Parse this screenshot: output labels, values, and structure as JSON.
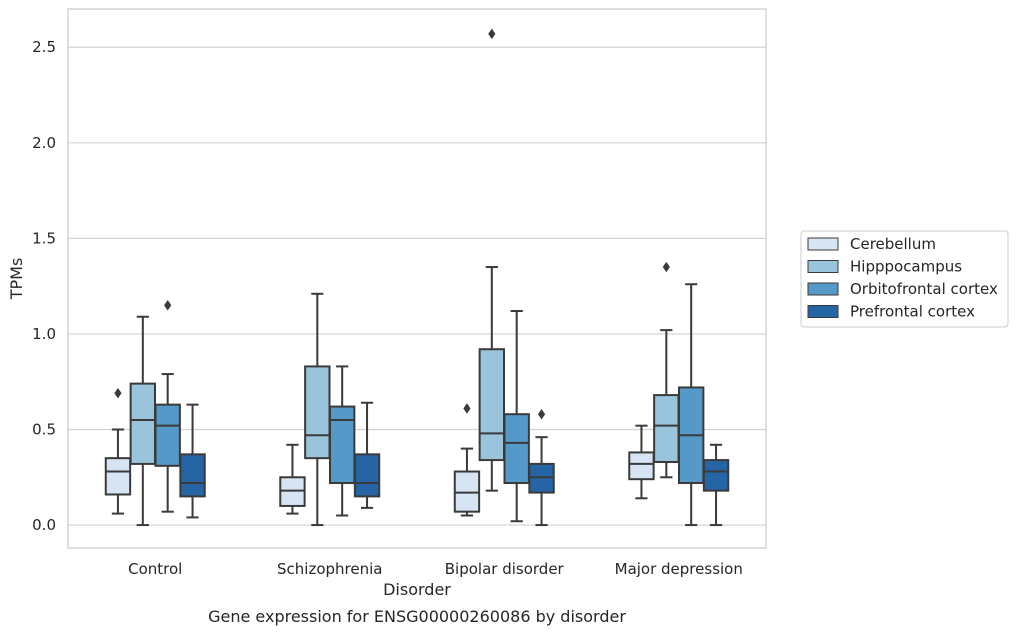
{
  "chart_data": {
    "type": "boxplot",
    "title": "Gene expression for ENSG00000260086 by disorder",
    "xlabel": "Disorder",
    "ylabel": "TPMs",
    "categories": [
      "Control",
      "Schizophrenia",
      "Bipolar disorder",
      "Major depression"
    ],
    "ylim": [
      -0.12,
      2.7
    ],
    "yticks": [
      "0.0",
      "0.5",
      "1.0",
      "1.5",
      "2.0",
      "2.5"
    ],
    "grid": true,
    "legend_position": "right",
    "series": [
      {
        "name": "Cerebellum",
        "color": "#d6e4f3",
        "boxes": [
          {
            "whisker_low": 0.06,
            "q1": 0.16,
            "median": 0.28,
            "q3": 0.35,
            "whisker_high": 0.5,
            "outliers": [
              0.69
            ]
          },
          {
            "whisker_low": 0.06,
            "q1": 0.1,
            "median": 0.18,
            "q3": 0.25,
            "whisker_high": 0.42,
            "outliers": []
          },
          {
            "whisker_low": 0.05,
            "q1": 0.07,
            "median": 0.17,
            "q3": 0.28,
            "whisker_high": 0.4,
            "outliers": [
              0.61
            ]
          },
          {
            "whisker_low": 0.14,
            "q1": 0.24,
            "median": 0.32,
            "q3": 0.38,
            "whisker_high": 0.52,
            "outliers": []
          }
        ]
      },
      {
        "name": "Hipppocampus",
        "color": "#9ac3dc",
        "boxes": [
          {
            "whisker_low": 0.0,
            "q1": 0.32,
            "median": 0.55,
            "q3": 0.74,
            "whisker_high": 1.09,
            "outliers": []
          },
          {
            "whisker_low": 0.0,
            "q1": 0.35,
            "median": 0.47,
            "q3": 0.83,
            "whisker_high": 1.21,
            "outliers": []
          },
          {
            "whisker_low": 0.18,
            "q1": 0.34,
            "median": 0.48,
            "q3": 0.92,
            "whisker_high": 1.35,
            "outliers": [
              2.57
            ]
          },
          {
            "whisker_low": 0.25,
            "q1": 0.33,
            "median": 0.52,
            "q3": 0.68,
            "whisker_high": 1.02,
            "outliers": [
              1.35
            ]
          }
        ]
      },
      {
        "name": "Orbitofrontal cortex",
        "color": "#5599c8",
        "boxes": [
          {
            "whisker_low": 0.07,
            "q1": 0.31,
            "median": 0.52,
            "q3": 0.63,
            "whisker_high": 0.79,
            "outliers": [
              1.15
            ]
          },
          {
            "whisker_low": 0.05,
            "q1": 0.22,
            "median": 0.55,
            "q3": 0.62,
            "whisker_high": 0.83,
            "outliers": []
          },
          {
            "whisker_low": 0.02,
            "q1": 0.22,
            "median": 0.43,
            "q3": 0.58,
            "whisker_high": 1.12,
            "outliers": []
          },
          {
            "whisker_low": 0.0,
            "q1": 0.22,
            "median": 0.47,
            "q3": 0.72,
            "whisker_high": 1.26,
            "outliers": []
          }
        ]
      },
      {
        "name": "Prefrontal cortex",
        "color": "#2565a5",
        "boxes": [
          {
            "whisker_low": 0.04,
            "q1": 0.15,
            "median": 0.22,
            "q3": 0.37,
            "whisker_high": 0.63,
            "outliers": []
          },
          {
            "whisker_low": 0.09,
            "q1": 0.15,
            "median": 0.22,
            "q3": 0.37,
            "whisker_high": 0.64,
            "outliers": []
          },
          {
            "whisker_low": 0.0,
            "q1": 0.17,
            "median": 0.25,
            "q3": 0.32,
            "whisker_high": 0.46,
            "outliers": [
              0.58
            ]
          },
          {
            "whisker_low": 0.0,
            "q1": 0.18,
            "median": 0.28,
            "q3": 0.34,
            "whisker_high": 0.42,
            "outliers": []
          }
        ]
      }
    ]
  }
}
